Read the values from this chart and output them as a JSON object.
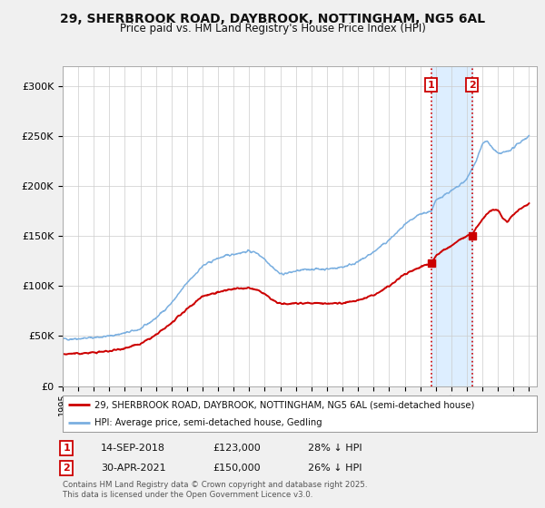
{
  "title1": "29, SHERBROOK ROAD, DAYBROOK, NOTTINGHAM, NG5 6AL",
  "title2": "Price paid vs. HM Land Registry's House Price Index (HPI)",
  "legend_red": "29, SHERBROOK ROAD, DAYBROOK, NOTTINGHAM, NG5 6AL (semi-detached house)",
  "legend_blue": "HPI: Average price, semi-detached house, Gedling",
  "footnote_line1": "Contains HM Land Registry data © Crown copyright and database right 2025.",
  "footnote_line2": "This data is licensed under the Open Government Licence v3.0.",
  "event1_date": "14-SEP-2018",
  "event1_price": 123000,
  "event1_note": "28% ↓ HPI",
  "event2_date": "30-APR-2021",
  "event2_price": 150000,
  "event2_note": "26% ↓ HPI",
  "event1_x": 2018.71,
  "event2_x": 2021.33,
  "ylim_min": 0,
  "ylim_max": 320000,
  "yticks": [
    0,
    50000,
    100000,
    150000,
    200000,
    250000,
    300000
  ],
  "ytick_labels": [
    "£0",
    "£50K",
    "£100K",
    "£150K",
    "£200K",
    "£250K",
    "£300K"
  ],
  "xmin": 1995,
  "xmax": 2025.5,
  "bg_color": "#f0f0f0",
  "plot_bg": "#ffffff",
  "red": "#cc0000",
  "blue": "#7aafe0",
  "shade": "#ddeeff",
  "grid_color": "#cccccc",
  "title1_fontsize": 10,
  "title2_fontsize": 8.5
}
